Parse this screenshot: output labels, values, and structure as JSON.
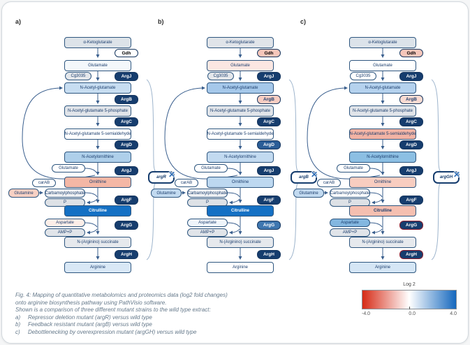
{
  "legend": {
    "title": "Log 2",
    "ticks": [
      "-4.0",
      "0.0",
      "4.0"
    ],
    "gradient_left": "#d62b16",
    "gradient_mid": "#ffffff",
    "gradient_right": "#1568be"
  },
  "caption": {
    "lines": [
      "Fig. 4: Mapping of quantitative metabolomics and proteomics data (log2 fold changes)",
      "onto arginine biosynthesis pathway using PathVisio software.",
      "Shown is a comparison of three different mutant strains to the wild type extract:"
    ],
    "items": [
      {
        "marker": "a)",
        "text": "Repressor deletion mutant (argR) versus wild type"
      },
      {
        "marker": "b)",
        "text": "Feedback resistant mutant (argB) versus wild type"
      },
      {
        "marker": "c)",
        "text": "Debottlenecking by overexpression mutant (argGH) versus wild type"
      }
    ]
  },
  "pathway": {
    "node_labels": {
      "akg": "α-Ketoglutarate",
      "gdh": "Gdh",
      "glu1": "Glutamate",
      "cg3035": "Cg3035",
      "argJ1": "ArgJ",
      "nag": "N-Acetyl-glutamate",
      "argB": "ArgB",
      "nagp": "N-Acetyl-glutamate 5-phosphate",
      "argC": "ArgC",
      "nags": "N-Acetyl-glutamate 5-semialdehyde",
      "argD": "ArgD",
      "nao": "N-Acetylornithine",
      "glu2": "Glutamate",
      "argJ2": "ArgJ",
      "orn": "Ornithine",
      "carAB": "carAB",
      "gln": "Glutamine",
      "cbp": "Carbamoylphosphate",
      "p": "P",
      "argF": "ArgF",
      "cit": "Citrulline",
      "asp": "Aspartate",
      "amp": "AMP+P",
      "argG": "ArgG",
      "nas": "N-(Arginino) succinate",
      "argH": "ArgH",
      "arg": "Arginine"
    },
    "panels": [
      {
        "label": "a)",
        "mutant": "argR",
        "mutant_symbol": "✕",
        "nodes": {
          "akg": {
            "bg": "#dde3e9"
          },
          "gdh": {
            "bg": "#ffffff"
          },
          "glu1": {
            "bg": "#f4f8fb"
          },
          "cg3035": {
            "bg": "#e4e7eb"
          },
          "argJ1": {
            "bg": "#163d6e",
            "fg": "#ffffff"
          },
          "nag": {
            "bg": "#c7ddf1"
          },
          "argB": {
            "bg": "#163d6e",
            "fg": "#ffffff"
          },
          "nagp": {
            "bg": "#e0e4e9"
          },
          "argC": {
            "bg": "#163d6e",
            "fg": "#ffffff"
          },
          "nags": {
            "bg": "#ffffff"
          },
          "argD": {
            "bg": "#163d6e",
            "fg": "#ffffff"
          },
          "nao": {
            "bg": "#aecfea"
          },
          "glu2": {
            "bg": "#ffffff"
          },
          "argJ2": {
            "bg": "#163d6e",
            "fg": "#ffffff"
          },
          "orn": {
            "bg": "#f4b7a5"
          },
          "carAB": {
            "bg": "#ffffff"
          },
          "gln": {
            "bg": "#f7d0c3"
          },
          "cbp": {
            "bg": "#eef0f3"
          },
          "p": {
            "bg": "#dde1e6"
          },
          "argF": {
            "bg": "#163d6e",
            "fg": "#ffffff"
          },
          "cit": {
            "bg": "#1470c4",
            "fg": "#ffffff",
            "bold": true
          },
          "asp": {
            "bg": "#fdeee8"
          },
          "amp": {
            "bg": "#e0e4e9"
          },
          "argG": {
            "bg": "#163d6e",
            "fg": "#ffffff"
          },
          "nas": {
            "bg": "#e6e9ed"
          },
          "argH": {
            "bg": "#163d6e",
            "fg": "#ffffff"
          },
          "arg": {
            "bg": "#d9e8f6"
          }
        }
      },
      {
        "label": "b)",
        "mutant": "argB",
        "mutant_symbol": "✕",
        "nodes": {
          "akg": {
            "bg": "#e0e4e9"
          },
          "gdh": {
            "bg": "#f6c6ba"
          },
          "glu1": {
            "bg": "#fbe7e2"
          },
          "cg3035": {
            "bg": "#e4e7eb"
          },
          "argJ1": {
            "bg": "#163d6e",
            "fg": "#ffffff"
          },
          "nag": {
            "bg": "#a5c8ea"
          },
          "argB": {
            "bg": "#f8cdc2",
            "fg": "#1c3e6e"
          },
          "nagp": {
            "bg": "#e0e4e9"
          },
          "argC": {
            "bg": "#163d6e",
            "fg": "#ffffff"
          },
          "nags": {
            "bg": "#ffffff"
          },
          "argD": {
            "bg": "#2a5d97",
            "fg": "#ffffff"
          },
          "nao": {
            "bg": "#c2daf0"
          },
          "glu2": {
            "bg": "#ffffff"
          },
          "argJ2": {
            "bg": "#163d6e",
            "fg": "#ffffff"
          },
          "orn": {
            "bg": "#bdd8f0"
          },
          "carAB": {
            "bg": "#ffffff"
          },
          "gln": {
            "bg": "#c2daf0"
          },
          "cbp": {
            "bg": "#eef0f3"
          },
          "p": {
            "bg": "#dde1e6"
          },
          "argF": {
            "bg": "#163d6e",
            "fg": "#ffffff"
          },
          "cit": {
            "bg": "#1470c4",
            "fg": "#ffffff",
            "bold": true
          },
          "asp": {
            "bg": "#eff5fb"
          },
          "amp": {
            "bg": "#e0e4e9"
          },
          "argG": {
            "bg": "#3f77b0",
            "fg": "#ffffff"
          },
          "nas": {
            "bg": "#e6e9ed"
          },
          "argH": {
            "bg": "#163d6e",
            "fg": "#ffffff"
          },
          "arg": {
            "bg": "#ffffff"
          }
        }
      },
      {
        "label": "c)",
        "mutant": "argGH",
        "mutant_symbol": "✕",
        "nodes": {
          "akg": {
            "bg": "#dce3ea"
          },
          "gdh": {
            "bg": "#f6c6ba"
          },
          "glu1": {
            "bg": "#ffffff"
          },
          "cg3035": {
            "bg": "#ffffff"
          },
          "argJ1": {
            "bg": "#163d6e",
            "fg": "#ffffff"
          },
          "nag": {
            "bg": "#b5d2ee"
          },
          "argB": {
            "bg": "#fadbd2",
            "fg": "#1c3e6e"
          },
          "nagp": {
            "bg": "#e0e4e9"
          },
          "argC": {
            "bg": "#163d6e",
            "fg": "#ffffff"
          },
          "nags": {
            "bg": "#f2b3a4"
          },
          "argD": {
            "bg": "#163d6e",
            "fg": "#ffffff"
          },
          "nao": {
            "bg": "#8cbfe3"
          },
          "glu2": {
            "bg": "#ffffff"
          },
          "argJ2": {
            "bg": "#163d6e",
            "fg": "#ffffff"
          },
          "orn": {
            "bg": "#f8cdc0"
          },
          "carAB": {
            "bg": "#ffffff"
          },
          "gln": {
            "bg": "#c2daf0"
          },
          "cbp": {
            "bg": "#ffffff"
          },
          "p": {
            "bg": "#dde1e6"
          },
          "argF": {
            "bg": "#163d6e",
            "fg": "#ffffff"
          },
          "cit": {
            "bg": "#f5bfb0",
            "fg": "#1c3e6e",
            "bold": true
          },
          "asp": {
            "bg": "#83b7e0"
          },
          "amp": {
            "bg": "#e0e4e9"
          },
          "argG": {
            "bg": "#163d6e",
            "fg": "#ffffff",
            "border": "#8e1f2f"
          },
          "nas": {
            "bg": "#e6e9ed"
          },
          "argH": {
            "bg": "#163d6e",
            "fg": "#ffffff",
            "border": "#8e1f2f"
          },
          "arg": {
            "bg": "#d5e6f5"
          }
        }
      }
    ]
  }
}
